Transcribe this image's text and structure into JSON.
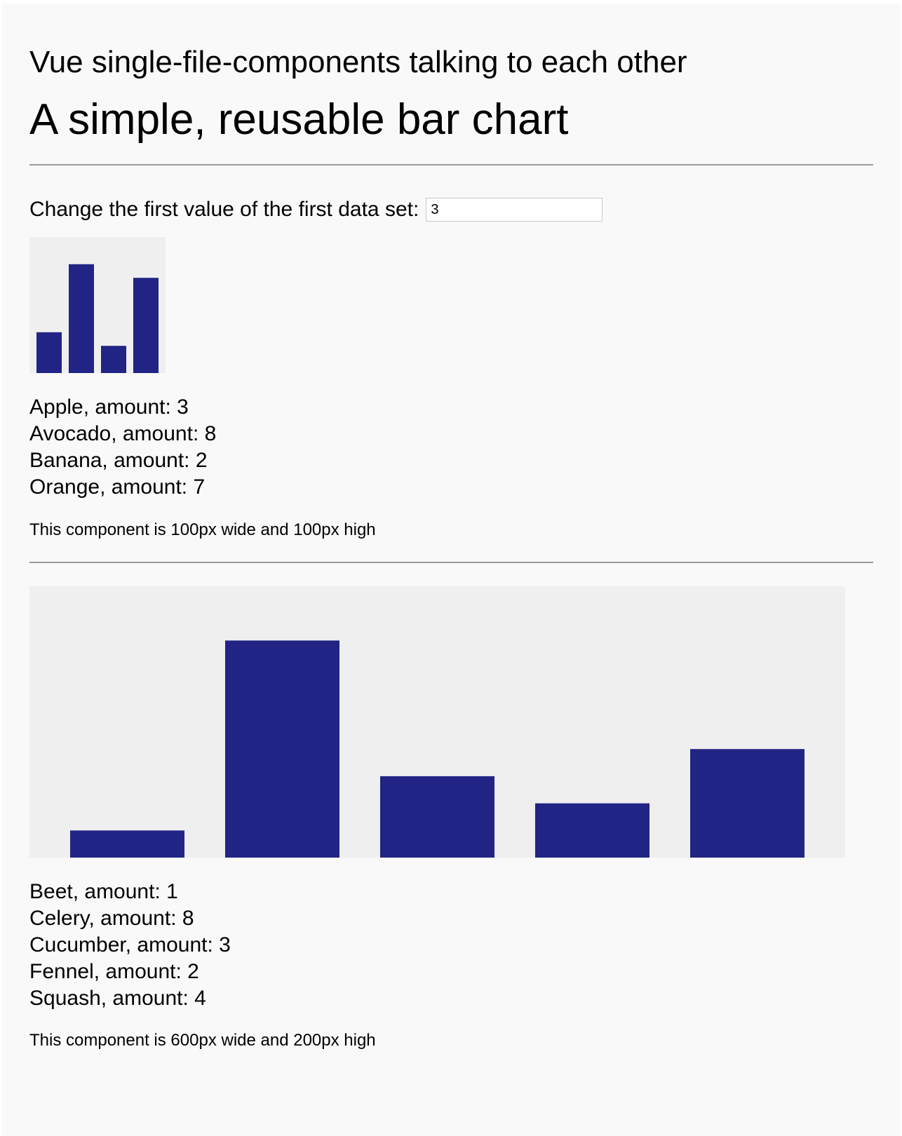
{
  "page": {
    "subtitle": "Vue single-file-components talking to each other",
    "title": "A simple, reusable bar chart"
  },
  "input_row": {
    "label": "Change the first value of the first data set:",
    "value": "3"
  },
  "colors": {
    "bar": "#212484",
    "chart_background": "#efefef",
    "page_background": "#f9f9f9"
  },
  "charts": [
    {
      "legend": [
        "Apple, amount: 3",
        "Avocado, amount: 8",
        "Banana, amount: 2",
        "Orange, amount: 7"
      ],
      "caption": "This component is 100px wide and 100px high"
    },
    {
      "legend": [
        "Beet, amount: 1",
        "Celery, amount: 8",
        "Cucumber, amount: 3",
        "Fennel, amount: 2",
        "Squash, amount: 4"
      ],
      "caption": "This component is 600px wide and 200px high"
    }
  ],
  "chart_data": [
    {
      "type": "bar",
      "categories": [
        "Apple",
        "Avocado",
        "Banana",
        "Orange"
      ],
      "values": [
        3,
        8,
        2,
        7
      ],
      "ylim": [
        0,
        10
      ]
    },
    {
      "type": "bar",
      "categories": [
        "Beet",
        "Celery",
        "Cucumber",
        "Fennel",
        "Squash"
      ],
      "values": [
        1,
        8,
        3,
        2,
        4
      ],
      "ylim": [
        0,
        10
      ]
    }
  ]
}
